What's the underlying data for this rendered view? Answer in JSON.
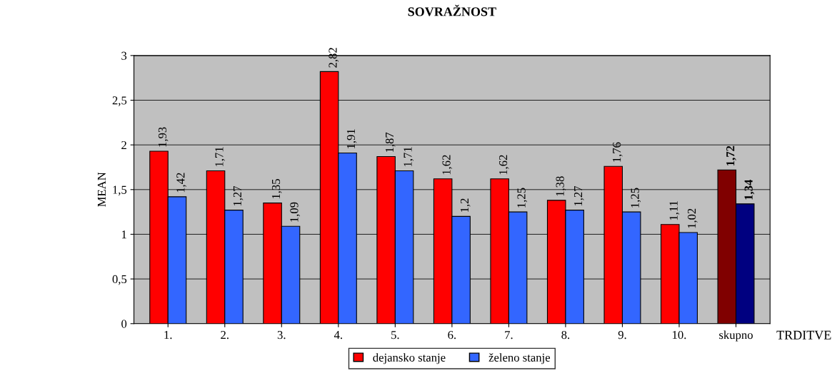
{
  "chart_data": {
    "type": "bar",
    "title": "SOVRAŽNOST",
    "xlabel": "TRDITVE",
    "ylabel": "MEAN",
    "categories": [
      "1.",
      "2.",
      "3.",
      "4.",
      "5.",
      "6.",
      "7.",
      "8.",
      "9.",
      "10.",
      "skupno"
    ],
    "series": [
      {
        "name": "dejansko stanje",
        "color": "#ff0000",
        "colors": [
          "#ff0000",
          "#ff0000",
          "#ff0000",
          "#ff0000",
          "#ff0000",
          "#ff0000",
          "#ff0000",
          "#ff0000",
          "#ff0000",
          "#ff0000",
          "#800000"
        ],
        "values": [
          1.93,
          1.71,
          1.35,
          2.82,
          1.87,
          1.62,
          1.62,
          1.38,
          1.76,
          1.11,
          1.72
        ],
        "value_labels": [
          "1,93",
          "1,71",
          "1,35",
          "2,82",
          "1,87",
          "1,62",
          "1,62",
          "1,38",
          "1,76",
          "1,11",
          "1,72"
        ]
      },
      {
        "name": "želeno stanje",
        "color": "#3366ff",
        "colors": [
          "#3366ff",
          "#3366ff",
          "#3366ff",
          "#3366ff",
          "#3366ff",
          "#3366ff",
          "#3366ff",
          "#3366ff",
          "#3366ff",
          "#3366ff",
          "#000080"
        ],
        "values": [
          1.42,
          1.27,
          1.09,
          1.91,
          1.71,
          1.2,
          1.25,
          1.27,
          1.25,
          1.02,
          1.34
        ],
        "value_labels": [
          "1,42",
          "1,27",
          "1,09",
          "1,91",
          "1,71",
          "1,2",
          "1,25",
          "1,27",
          "1,25",
          "1,02",
          "1,34"
        ]
      }
    ],
    "ylim": [
      0,
      3
    ],
    "yticks": [
      0,
      {
        "value": 0.5,
        "label": "0,5"
      },
      1,
      {
        "value": 1.5,
        "label": "1,5"
      },
      2,
      {
        "value": 2.5,
        "label": "2,5"
      },
      3
    ],
    "grid": "y",
    "legend": "bottom"
  }
}
